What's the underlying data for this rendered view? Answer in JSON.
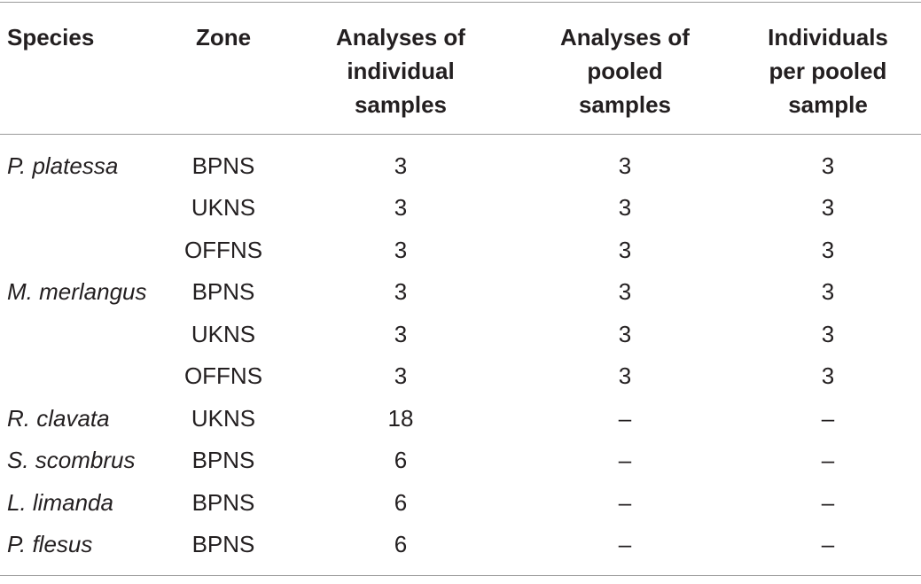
{
  "table": {
    "header": [
      "Species",
      "Zone",
      "Analyses of\nindividual\nsamples",
      "Analyses of\npooled\nsamples",
      "Individuals\nper pooled\nsample"
    ],
    "rows": [
      [
        "P. platessa",
        "BPNS",
        3,
        3,
        3
      ],
      [
        null,
        "UKNS",
        3,
        3,
        3
      ],
      [
        null,
        "OFFNS",
        3,
        3,
        3
      ],
      [
        "M. merlangus",
        "BPNS",
        3,
        3,
        3
      ],
      [
        null,
        "UKNS",
        3,
        3,
        3
      ],
      [
        null,
        "OFFNS",
        3,
        3,
        3
      ],
      [
        "R. clavata",
        "UKNS",
        18,
        "–",
        "–"
      ],
      [
        "S. scombrus",
        "BPNS",
        6,
        "–",
        "–"
      ],
      [
        "L. limanda",
        "BPNS",
        6,
        "–",
        "–"
      ],
      [
        "P. flesus",
        "BPNS",
        6,
        "–",
        "–"
      ]
    ]
  }
}
